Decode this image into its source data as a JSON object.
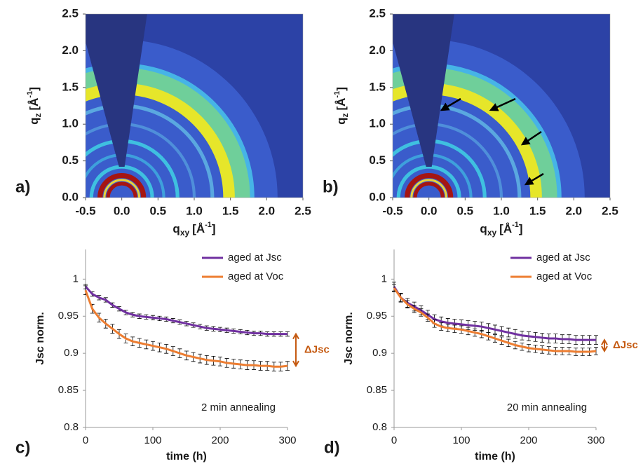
{
  "chart_data": [
    {
      "type": "image",
      "panel": "a)",
      "xlabel": {
        "text": "q",
        "sub": "xy",
        "unit": "[Å",
        "sup": "-1",
        "end": "]"
      },
      "ylabel": {
        "text": "q",
        "sub": "z",
        "unit": "[Å",
        "sup": "-1",
        "end": "]"
      },
      "xlim": [
        -0.5,
        2.5
      ],
      "ylim": [
        0,
        2.5
      ],
      "xticks": [
        -0.5,
        {
          "value": 0,
          "label": "0.0"
        },
        0.5,
        {
          "value": 1,
          "label": "1.0"
        },
        1.5,
        {
          "value": 2,
          "label": "2.0"
        },
        2.5
      ],
      "yticks": [
        {
          "value": 0,
          "label": "0.0"
        },
        0.5,
        {
          "value": 1,
          "label": "1.0"
        },
        1.5,
        {
          "value": 2,
          "label": "2.0"
        },
        2.5
      ]
    },
    {
      "type": "image",
      "panel": "b)",
      "xlabel": {
        "text": "q",
        "sub": "xy",
        "unit": "[Å",
        "sup": "-1",
        "end": "]"
      },
      "ylabel": {
        "text": "q",
        "sub": "z",
        "unit": "[Å",
        "sup": "-1",
        "end": "]"
      },
      "xlim": [
        -0.5,
        2.5
      ],
      "ylim": [
        0,
        2.5
      ],
      "xticks": [
        -0.5,
        {
          "value": 0,
          "label": "0.0"
        },
        0.5,
        {
          "value": 1,
          "label": "1.0"
        },
        1.5,
        {
          "value": 2,
          "label": "2.0"
        },
        2.5
      ],
      "yticks": [
        {
          "value": 0,
          "label": "0.0"
        },
        0.5,
        {
          "value": 1,
          "label": "1.0"
        },
        1.5,
        {
          "value": 2,
          "label": "2.0"
        },
        2.5
      ]
    },
    {
      "type": "line",
      "panel": "c)",
      "xlabel": "time (h)",
      "ylabel": "Jsc norm.",
      "annotation": "2 min annealing",
      "delta_label": "ΔJsc",
      "legend": "upper right",
      "xlim": [
        0,
        300
      ],
      "ylim": [
        0.8,
        1.04
      ],
      "xticks": [
        0,
        100,
        200,
        300
      ],
      "yticks": [
        0.8,
        0.85,
        0.9,
        0.95,
        1
      ],
      "x": [
        0,
        10,
        20,
        30,
        40,
        50,
        60,
        70,
        80,
        90,
        100,
        110,
        120,
        130,
        140,
        150,
        160,
        170,
        180,
        190,
        200,
        210,
        220,
        230,
        240,
        250,
        260,
        270,
        280,
        290,
        300
      ],
      "series": [
        {
          "name": "aged at Jsc",
          "color": "#7030a0",
          "values": [
            0.99,
            0.98,
            0.975,
            0.972,
            0.965,
            0.96,
            0.955,
            0.952,
            0.95,
            0.949,
            0.948,
            0.947,
            0.946,
            0.944,
            0.942,
            0.94,
            0.938,
            0.936,
            0.934,
            0.933,
            0.932,
            0.931,
            0.93,
            0.929,
            0.928,
            0.927,
            0.927,
            0.926,
            0.926,
            0.926,
            0.926
          ],
          "errors": [
            0.003,
            0.003,
            0.003,
            0.003,
            0.003,
            0.003,
            0.003,
            0.003,
            0.003,
            0.003,
            0.003,
            0.003,
            0.003,
            0.003,
            0.003,
            0.003,
            0.003,
            0.003,
            0.003,
            0.003,
            0.003,
            0.003,
            0.003,
            0.003,
            0.003,
            0.003,
            0.003,
            0.003,
            0.003,
            0.003,
            0.003
          ]
        },
        {
          "name": "aged at Voc",
          "color": "#ed7d31",
          "values": [
            0.985,
            0.96,
            0.948,
            0.94,
            0.933,
            0.926,
            0.92,
            0.916,
            0.914,
            0.912,
            0.91,
            0.908,
            0.906,
            0.903,
            0.9,
            0.897,
            0.895,
            0.893,
            0.891,
            0.89,
            0.889,
            0.887,
            0.886,
            0.885,
            0.884,
            0.884,
            0.883,
            0.883,
            0.882,
            0.882,
            0.883
          ],
          "errors": [
            0.006,
            0.006,
            0.006,
            0.006,
            0.006,
            0.006,
            0.006,
            0.006,
            0.006,
            0.006,
            0.006,
            0.006,
            0.006,
            0.006,
            0.006,
            0.006,
            0.006,
            0.006,
            0.006,
            0.006,
            0.006,
            0.006,
            0.006,
            0.006,
            0.006,
            0.006,
            0.006,
            0.006,
            0.006,
            0.006,
            0.006
          ]
        }
      ]
    },
    {
      "type": "line",
      "panel": "d)",
      "xlabel": "time (h)",
      "ylabel": "Jsc norm.",
      "annotation": "20 min annealing",
      "delta_label": "ΔJsc",
      "legend": "upper right",
      "xlim": [
        0,
        300
      ],
      "ylim": [
        0.8,
        1.04
      ],
      "xticks": [
        0,
        100,
        200,
        300
      ],
      "yticks": [
        0.8,
        0.85,
        0.9,
        0.95,
        1
      ],
      "x": [
        0,
        10,
        20,
        30,
        40,
        50,
        60,
        70,
        80,
        90,
        100,
        110,
        120,
        130,
        140,
        150,
        160,
        170,
        180,
        190,
        200,
        210,
        220,
        230,
        240,
        250,
        260,
        270,
        280,
        290,
        300
      ],
      "series": [
        {
          "name": "aged at Jsc",
          "color": "#7030a0",
          "values": [
            0.99,
            0.975,
            0.968,
            0.963,
            0.958,
            0.952,
            0.946,
            0.943,
            0.941,
            0.94,
            0.939,
            0.938,
            0.937,
            0.936,
            0.934,
            0.932,
            0.93,
            0.928,
            0.926,
            0.924,
            0.923,
            0.922,
            0.921,
            0.92,
            0.92,
            0.919,
            0.919,
            0.918,
            0.918,
            0.918,
            0.918
          ],
          "errors": [
            0.006,
            0.006,
            0.006,
            0.006,
            0.006,
            0.006,
            0.006,
            0.006,
            0.006,
            0.006,
            0.006,
            0.006,
            0.006,
            0.006,
            0.006,
            0.006,
            0.006,
            0.006,
            0.006,
            0.006,
            0.006,
            0.006,
            0.006,
            0.006,
            0.006,
            0.006,
            0.006,
            0.006,
            0.006,
            0.006,
            0.006
          ]
        },
        {
          "name": "aged at Voc",
          "color": "#ed7d31",
          "values": [
            0.988,
            0.975,
            0.966,
            0.96,
            0.955,
            0.948,
            0.94,
            0.936,
            0.934,
            0.933,
            0.932,
            0.93,
            0.928,
            0.926,
            0.923,
            0.92,
            0.917,
            0.914,
            0.911,
            0.909,
            0.907,
            0.906,
            0.905,
            0.904,
            0.903,
            0.903,
            0.903,
            0.902,
            0.902,
            0.902,
            0.903
          ],
          "errors": [
            0.005,
            0.005,
            0.005,
            0.005,
            0.005,
            0.005,
            0.005,
            0.005,
            0.005,
            0.005,
            0.005,
            0.005,
            0.005,
            0.005,
            0.005,
            0.005,
            0.005,
            0.005,
            0.005,
            0.005,
            0.005,
            0.005,
            0.005,
            0.005,
            0.005,
            0.005,
            0.005,
            0.005,
            0.005,
            0.005,
            0.005
          ]
        }
      ]
    }
  ]
}
